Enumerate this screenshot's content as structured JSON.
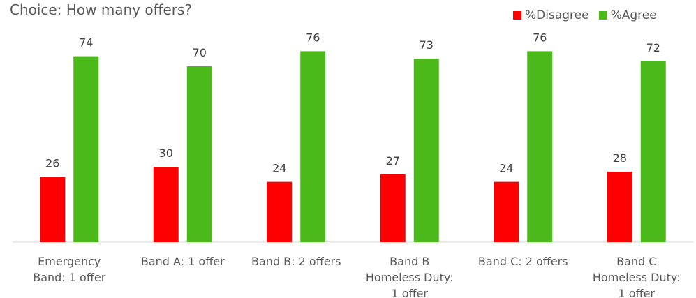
{
  "chart_data": {
    "type": "bar",
    "title": "Choice: How many offers?",
    "categories": [
      [
        "Emergency",
        "Band: 1 offer"
      ],
      [
        "Band A: 1 offer"
      ],
      [
        "Band B: 2 offers"
      ],
      [
        "Band B",
        "Homeless Duty:",
        "1 offer"
      ],
      [
        "Band C: 2 offers"
      ],
      [
        "Band C",
        "Homeless Duty:",
        "1 offer"
      ]
    ],
    "series": [
      {
        "name": "%Disagree",
        "color": "#ff0000",
        "values": [
          26,
          30,
          24,
          27,
          24,
          28
        ]
      },
      {
        "name": "%Agree",
        "color": "#4cb91a",
        "values": [
          74,
          70,
          76,
          73,
          76,
          72
        ]
      }
    ],
    "ylim": [
      0,
      80
    ],
    "grid": false,
    "legend_position": "top-right",
    "data_labels": true
  }
}
